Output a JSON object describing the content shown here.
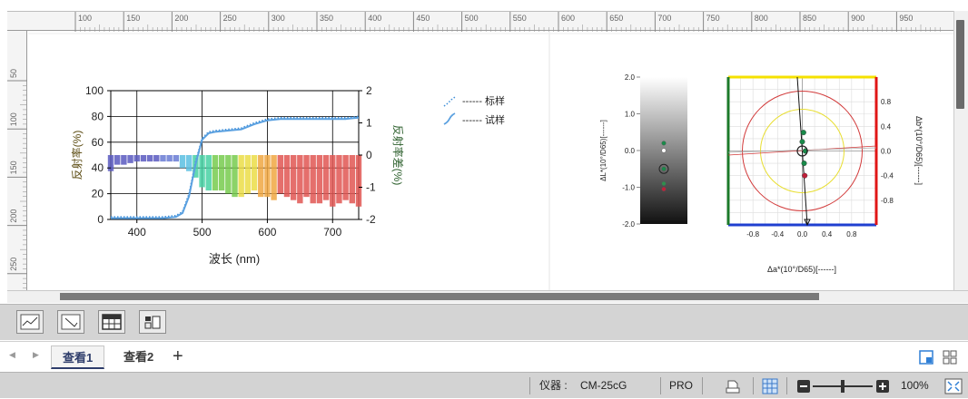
{
  "ruler": {
    "h_labels": [
      "100",
      "150",
      "200",
      "250",
      "300",
      "350",
      "400",
      "450",
      "500",
      "550",
      "600",
      "650",
      "700",
      "750",
      "800",
      "850",
      "900",
      "950"
    ],
    "v_labels": [
      "50",
      "100",
      "150",
      "200",
      "250"
    ]
  },
  "spectral_chart": {
    "type": "line",
    "left_ylabel": "反射率(%)",
    "right_ylabel": "反射率差(%)",
    "xlabel": "波长 (nm)",
    "x_ticks": [
      "400",
      "500",
      "600",
      "700"
    ],
    "left_ticks": [
      "0",
      "20",
      "40",
      "60",
      "80",
      "100"
    ],
    "right_ticks": [
      "-2",
      "-1",
      "0",
      "1",
      "2"
    ],
    "legend": [
      {
        "label": "------ 标样",
        "style": "dotted",
        "color": "#3f8fd8"
      },
      {
        "label": "------ 试样",
        "style": "solid",
        "color": "#5aa0e0"
      }
    ]
  },
  "chart_data": [
    {
      "type": "line",
      "title": "",
      "xlabel": "波长 (nm)",
      "ylabel": "反射率(%)",
      "ylabel_right": "反射率差(%)",
      "xlim": [
        360,
        740
      ],
      "ylim": [
        0,
        100
      ],
      "ylim_right": [
        -2,
        2
      ],
      "grid": true,
      "legend_position": "right-outside",
      "series": [
        {
          "name": "------ 标样",
          "x": [
            360,
            380,
            400,
            420,
            440,
            460,
            470,
            480,
            490,
            500,
            510,
            520,
            540,
            560,
            580,
            600,
            620,
            640,
            660,
            680,
            700,
            720,
            740
          ],
          "y": [
            2,
            2,
            2,
            2,
            2,
            3,
            6,
            20,
            45,
            63,
            68,
            69,
            70,
            71,
            75,
            78,
            79,
            79,
            79,
            79,
            79,
            79,
            80
          ]
        },
        {
          "name": "------ 试样",
          "x": [
            360,
            380,
            400,
            420,
            440,
            460,
            470,
            480,
            490,
            500,
            510,
            520,
            540,
            560,
            580,
            600,
            620,
            640,
            660,
            680,
            700,
            720,
            740
          ],
          "y": [
            1,
            1,
            1,
            1,
            1,
            2,
            5,
            18,
            43,
            62,
            67,
            68,
            69,
            70,
            74,
            77,
            78,
            78,
            78,
            78,
            78,
            78,
            79
          ]
        }
      ],
      "difference_bars": {
        "axis": "right",
        "x": [
          360,
          370,
          380,
          390,
          400,
          410,
          420,
          430,
          440,
          450,
          460,
          470,
          480,
          490,
          500,
          510,
          520,
          530,
          540,
          550,
          560,
          570,
          580,
          590,
          600,
          610,
          620,
          630,
          640,
          650,
          660,
          670,
          680,
          690,
          700,
          710,
          720,
          730,
          740
        ],
        "y": [
          -0.5,
          -0.3,
          -0.3,
          -0.25,
          -0.2,
          -0.2,
          -0.2,
          -0.2,
          -0.2,
          -0.2,
          -0.2,
          -0.4,
          -0.5,
          -0.7,
          -1.0,
          -1.1,
          -1.1,
          -1.1,
          -1.2,
          -1.3,
          -1.3,
          -1.2,
          -1.1,
          -1.3,
          -1.3,
          -1.4,
          -1.2,
          -1.3,
          -1.4,
          -1.5,
          -1.3,
          -1.5,
          -1.5,
          -1.4,
          -1.6,
          -1.5,
          -1.4,
          -1.5,
          -1.6
        ]
      }
    },
    {
      "type": "scatter",
      "title": "",
      "ylabel": "ΔL*(10°/D65)[------]",
      "ylim": [
        -2.0,
        2.0
      ],
      "y_ticks": [
        "2.0",
        "1.0",
        "0.0",
        "-1.0",
        "-2.0"
      ],
      "points": [
        {
          "x": 0,
          "y": 0.2,
          "color": "#1a8a4a"
        },
        {
          "x": 0,
          "y": 0.0,
          "color": "#ffffff"
        },
        {
          "x": 0,
          "y": -0.5,
          "color": "#1a8a4a"
        },
        {
          "x": 0,
          "y": -0.9,
          "color": "#2e8f4e"
        },
        {
          "x": 0,
          "y": -1.05,
          "color": "#c0203a"
        }
      ]
    },
    {
      "type": "scatter",
      "title": "",
      "xlabel": "Δa*(10°/D65)[------]",
      "ylabel": "Δb*(10°/D65)[------]",
      "xlim": [
        -1.2,
        1.2
      ],
      "ylim": [
        -1.2,
        1.2
      ],
      "x_ticks": [
        "-0.8",
        "-0.4",
        "0.0",
        "0.4",
        "0.8"
      ],
      "y_ticks": [
        "0.8",
        "0.4",
        "0.0",
        "-0.4",
        "-0.8"
      ],
      "points": [
        {
          "x": 0.02,
          "y": 0.3,
          "color": "#1a8a4a"
        },
        {
          "x": 0.0,
          "y": 0.15,
          "color": "#1a8a4a"
        },
        {
          "x": 0.05,
          "y": 0.0,
          "color": "#1a8a4a"
        },
        {
          "x": 0.03,
          "y": -0.2,
          "color": "#1a8a4a"
        },
        {
          "x": 0.04,
          "y": -0.4,
          "color": "#c0203a"
        }
      ]
    }
  ],
  "tabs": [
    {
      "label": "查看1"
    },
    {
      "label": "查看2"
    }
  ],
  "tab_add": "+",
  "status": {
    "instrument_label": "仪器 :",
    "instrument_value": "CM-25cG",
    "mode": "PRO",
    "zoom": "100%"
  },
  "icons": {
    "view_buttons": [
      "spectral-graph-icon",
      "color-diff-graph-icon",
      "table-icon",
      "layout-icon"
    ],
    "tab_nav_prev": "triangle-left-icon",
    "tab_nav_next": "triangle-right-icon",
    "tab_right": [
      "single-view-icon",
      "grid-view-icon"
    ],
    "status": [
      "print-icon",
      "grid-icon",
      "zoom-out-icon",
      "zoom-in-icon",
      "fit-screen-icon"
    ]
  },
  "colors": {
    "accent": "#2e3d6b",
    "status_bg": "#d3d3d3",
    "standard_line": "#3f8fd8",
    "sample_line": "#5aa0e0"
  }
}
